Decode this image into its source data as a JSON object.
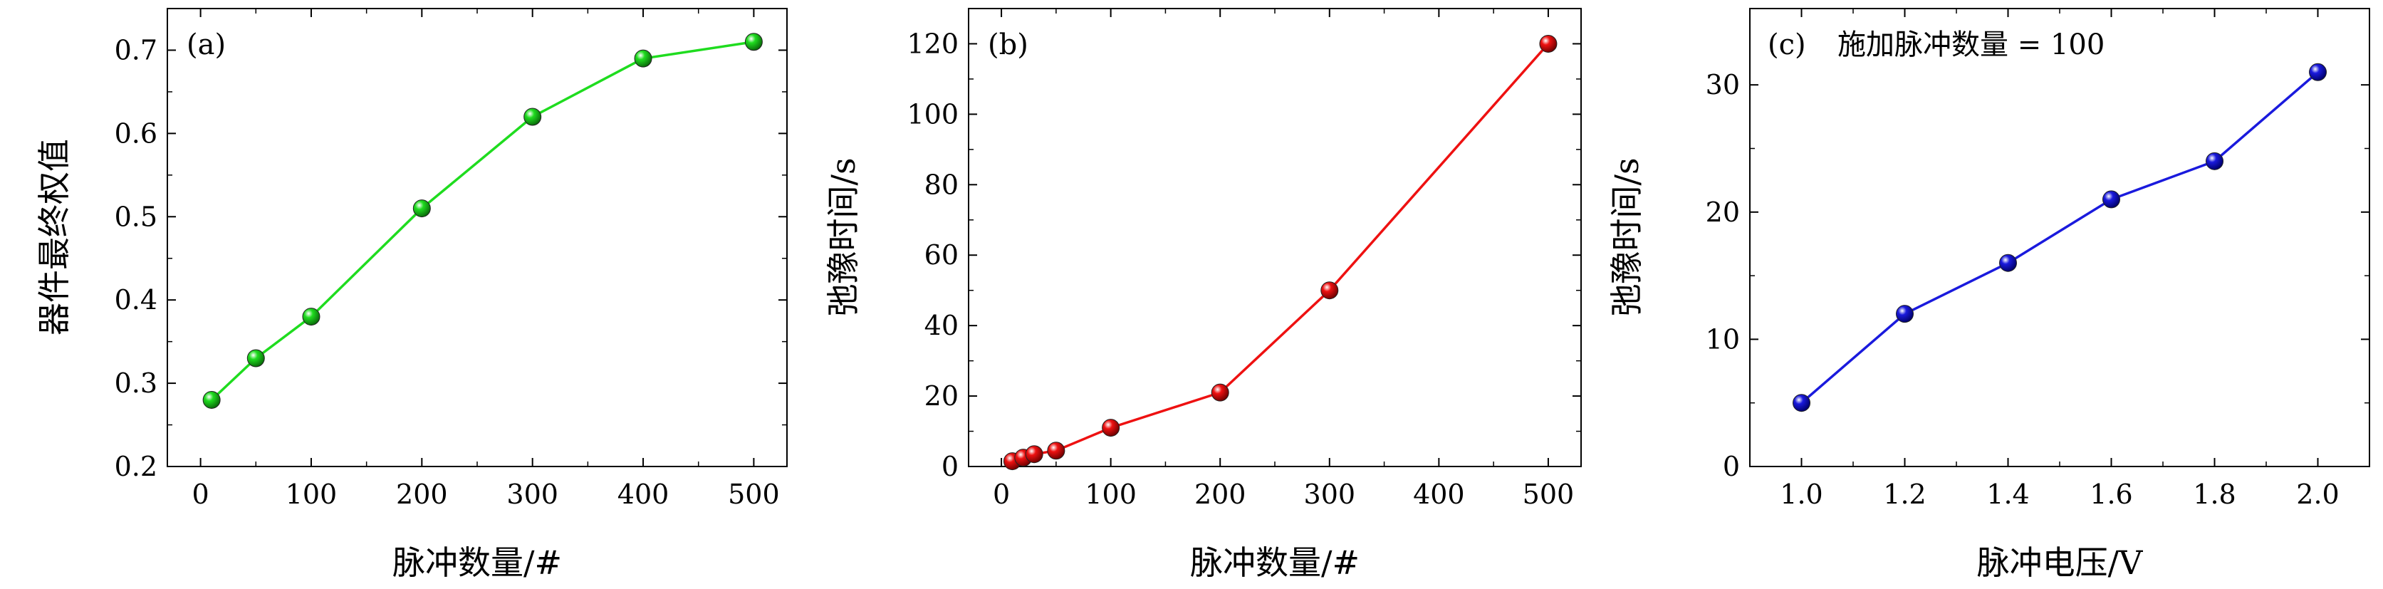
{
  "chart_data": [
    {
      "type": "line",
      "panel_label": "(a)",
      "annotation": "",
      "xlabel": "脉冲数量/#",
      "ylabel": "器件最终权值",
      "xlim": [
        -30,
        530
      ],
      "ylim": [
        0.2,
        0.75
      ],
      "xticks": [
        0,
        100,
        200,
        300,
        400,
        500
      ],
      "yticks": [
        0.2,
        0.3,
        0.4,
        0.5,
        0.6,
        0.7
      ],
      "xtick_labels": [
        "0",
        "100",
        "200",
        "300",
        "400",
        "500"
      ],
      "ytick_labels": [
        "0.2",
        "0.3",
        "0.4",
        "0.5",
        "0.6",
        "0.7"
      ],
      "grid": false,
      "color": "#1fdc1f",
      "series": [
        {
          "x": [
            10,
            50,
            100,
            200,
            300,
            400,
            500
          ],
          "y": [
            0.28,
            0.33,
            0.38,
            0.51,
            0.62,
            0.69,
            0.71
          ]
        }
      ]
    },
    {
      "type": "line",
      "panel_label": "(b)",
      "annotation": "",
      "xlabel": "脉冲数量/#",
      "ylabel": "弛豫时间/s",
      "xlim": [
        -30,
        530
      ],
      "ylim": [
        0,
        130
      ],
      "xticks": [
        0,
        100,
        200,
        300,
        400,
        500
      ],
      "yticks": [
        0,
        20,
        40,
        60,
        80,
        100,
        120
      ],
      "xtick_labels": [
        "0",
        "100",
        "200",
        "300",
        "400",
        "500"
      ],
      "ytick_labels": [
        "0",
        "20",
        "40",
        "60",
        "80",
        "100",
        "120"
      ],
      "grid": false,
      "color": "#ee1111",
      "series": [
        {
          "x": [
            10,
            20,
            30,
            50,
            100,
            200,
            300,
            500
          ],
          "y": [
            1.5,
            2.5,
            3.5,
            4.5,
            11,
            21,
            50,
            120
          ]
        }
      ]
    },
    {
      "type": "line",
      "panel_label": "(c)",
      "annotation": "施加脉冲数量 = 100",
      "xlabel": "脉冲电压/V",
      "ylabel": "弛豫时间/s",
      "xlim": [
        0.9,
        2.1
      ],
      "ylim": [
        0,
        36
      ],
      "xticks": [
        1.0,
        1.2,
        1.4,
        1.6,
        1.8,
        2.0
      ],
      "yticks": [
        0,
        10,
        20,
        30
      ],
      "xtick_labels": [
        "1.0",
        "1.2",
        "1.4",
        "1.6",
        "1.8",
        "2.0"
      ],
      "ytick_labels": [
        "0",
        "10",
        "20",
        "30"
      ],
      "grid": false,
      "color": "#1a1add",
      "series": [
        {
          "x": [
            1.0,
            1.2,
            1.4,
            1.6,
            1.8,
            2.0
          ],
          "y": [
            5,
            12,
            16,
            21,
            24,
            31
          ]
        }
      ]
    }
  ]
}
